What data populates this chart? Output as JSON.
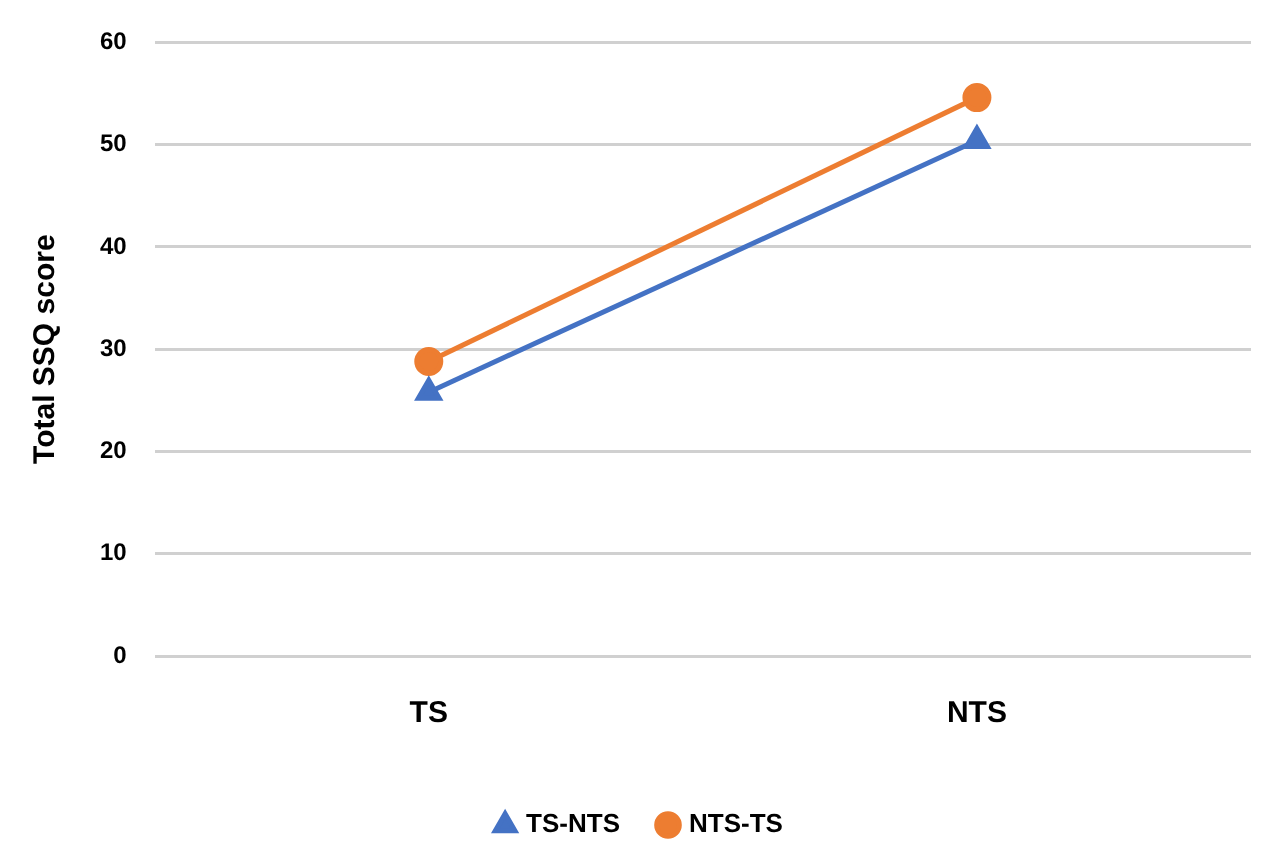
{
  "chart_data": {
    "type": "line",
    "ylabel": "Total SSQ score",
    "categories": [
      "TS",
      "NTS"
    ],
    "series": [
      {
        "name": "TS-NTS",
        "color": "#4472c4",
        "marker": "triangle",
        "values": [
          25.8,
          50.4
        ]
      },
      {
        "name": "NTS-TS",
        "color": "#ed7d31",
        "marker": "circle",
        "values": [
          28.8,
          54.6
        ]
      }
    ],
    "ylim": [
      0,
      60
    ],
    "yticks": [
      0,
      10,
      20,
      30,
      40,
      50,
      60
    ],
    "grid": "y",
    "legend": "bottom",
    "line_style": "solid"
  }
}
